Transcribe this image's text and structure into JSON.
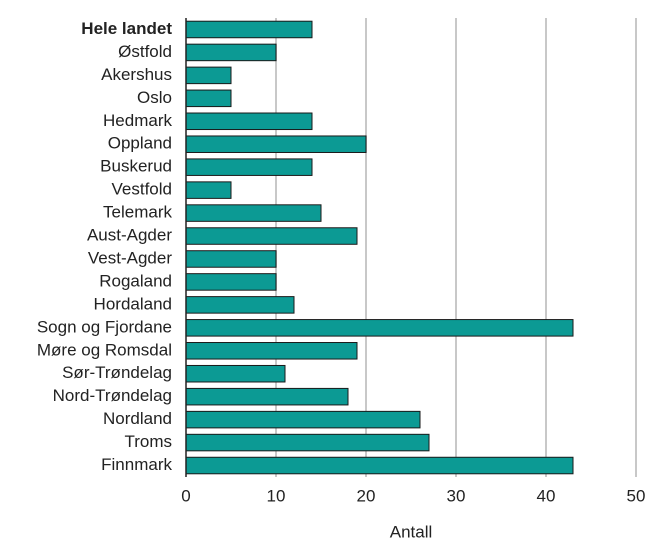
{
  "chart_data": {
    "type": "barh",
    "categories": [
      "Hele landet",
      "Østfold",
      "Akershus",
      "Oslo",
      "Hedmark",
      "Oppland",
      "Buskerud",
      "Vestfold",
      "Telemark",
      "Aust-Agder",
      "Vest-Agder",
      "Rogaland",
      "Hordaland",
      "Sogn og Fjordane",
      "Møre og Romsdal",
      "Sør-Trøndelag",
      "Nord-Trøndelag",
      "Nordland",
      "Troms",
      "Finnmark"
    ],
    "values": [
      14,
      10,
      5,
      5,
      14,
      20,
      14,
      5,
      15,
      19,
      10,
      10,
      12,
      43,
      19,
      11,
      18,
      26,
      27,
      43
    ],
    "color": "#0c9a94",
    "xlabel": "Antall",
    "xlim": [
      0,
      50
    ],
    "xticks": [
      0,
      10,
      20,
      30,
      40,
      50
    ],
    "grid": true
  }
}
